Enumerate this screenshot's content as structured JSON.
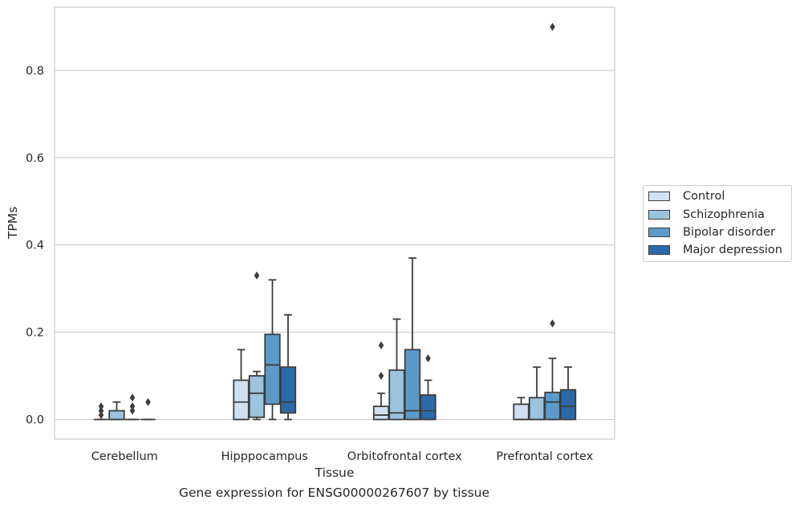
{
  "caption": "Gene expression for ENSG00000267607 by tissue",
  "chart_data": {
    "type": "boxplot",
    "xlabel": "Tissue",
    "ylabel": "TPMs",
    "ylim": [
      -0.045,
      0.945
    ],
    "yticks": [
      0.0,
      0.2,
      0.4,
      0.6,
      0.8
    ],
    "ytick_labels": [
      "0.0",
      "0.2",
      "0.4",
      "0.6",
      "0.8"
    ],
    "grid": "horizontal",
    "legend_position": "right",
    "categories": [
      "Cerebellum",
      "Hipppocampus",
      "Orbitofrontal cortex",
      "Prefrontal cortex"
    ],
    "series": [
      {
        "name": "Control",
        "color": "#d0e0f0",
        "boxes": [
          {
            "min": 0.0,
            "q1": 0.0,
            "median": 0.0,
            "q3": 0.0,
            "max": 0.0,
            "outliers": [
              0.01,
              0.02,
              0.03
            ]
          },
          {
            "min": 0.0,
            "q1": 0.0,
            "median": 0.04,
            "q3": 0.09,
            "max": 0.16,
            "outliers": []
          },
          {
            "min": 0.0,
            "q1": 0.0,
            "median": 0.01,
            "q3": 0.03,
            "max": 0.06,
            "outliers": [
              0.1,
              0.17
            ]
          },
          {
            "min": 0.0,
            "q1": 0.0,
            "median": 0.0,
            "q3": 0.035,
            "max": 0.05,
            "outliers": []
          }
        ]
      },
      {
        "name": "Schizophrenia",
        "color": "#9cc4df",
        "boxes": [
          {
            "min": 0.0,
            "q1": 0.0,
            "median": 0.0,
            "q3": 0.02,
            "max": 0.04,
            "outliers": []
          },
          {
            "min": 0.0,
            "q1": 0.005,
            "median": 0.06,
            "q3": 0.1,
            "max": 0.11,
            "outliers": [
              0.33
            ]
          },
          {
            "min": 0.0,
            "q1": 0.0,
            "median": 0.015,
            "q3": 0.113,
            "max": 0.23,
            "outliers": []
          },
          {
            "min": 0.0,
            "q1": 0.0,
            "median": 0.0,
            "q3": 0.05,
            "max": 0.12,
            "outliers": []
          }
        ]
      },
      {
        "name": "Bipolar disorder",
        "color": "#5b9ac8",
        "boxes": [
          {
            "min": 0.0,
            "q1": 0.0,
            "median": 0.0,
            "q3": 0.0,
            "max": 0.0,
            "outliers": [
              0.02,
              0.03,
              0.05
            ]
          },
          {
            "min": 0.0,
            "q1": 0.035,
            "median": 0.125,
            "q3": 0.195,
            "max": 0.32,
            "outliers": []
          },
          {
            "min": 0.0,
            "q1": 0.0,
            "median": 0.02,
            "q3": 0.16,
            "max": 0.37,
            "outliers": []
          },
          {
            "min": 0.0,
            "q1": 0.0,
            "median": 0.04,
            "q3": 0.062,
            "max": 0.14,
            "outliers": [
              0.22,
              0.9
            ]
          }
        ]
      },
      {
        "name": "Major depression",
        "color": "#2b69a9",
        "boxes": [
          {
            "min": 0.0,
            "q1": 0.0,
            "median": 0.0,
            "q3": 0.0,
            "max": 0.0,
            "outliers": [
              0.04
            ]
          },
          {
            "min": 0.0,
            "q1": 0.015,
            "median": 0.04,
            "q3": 0.12,
            "max": 0.24,
            "outliers": []
          },
          {
            "min": 0.0,
            "q1": 0.0,
            "median": 0.02,
            "q3": 0.056,
            "max": 0.09,
            "outliers": [
              0.14
            ]
          },
          {
            "min": 0.0,
            "q1": 0.0,
            "median": 0.03,
            "q3": 0.068,
            "max": 0.12,
            "outliers": []
          }
        ]
      }
    ]
  }
}
